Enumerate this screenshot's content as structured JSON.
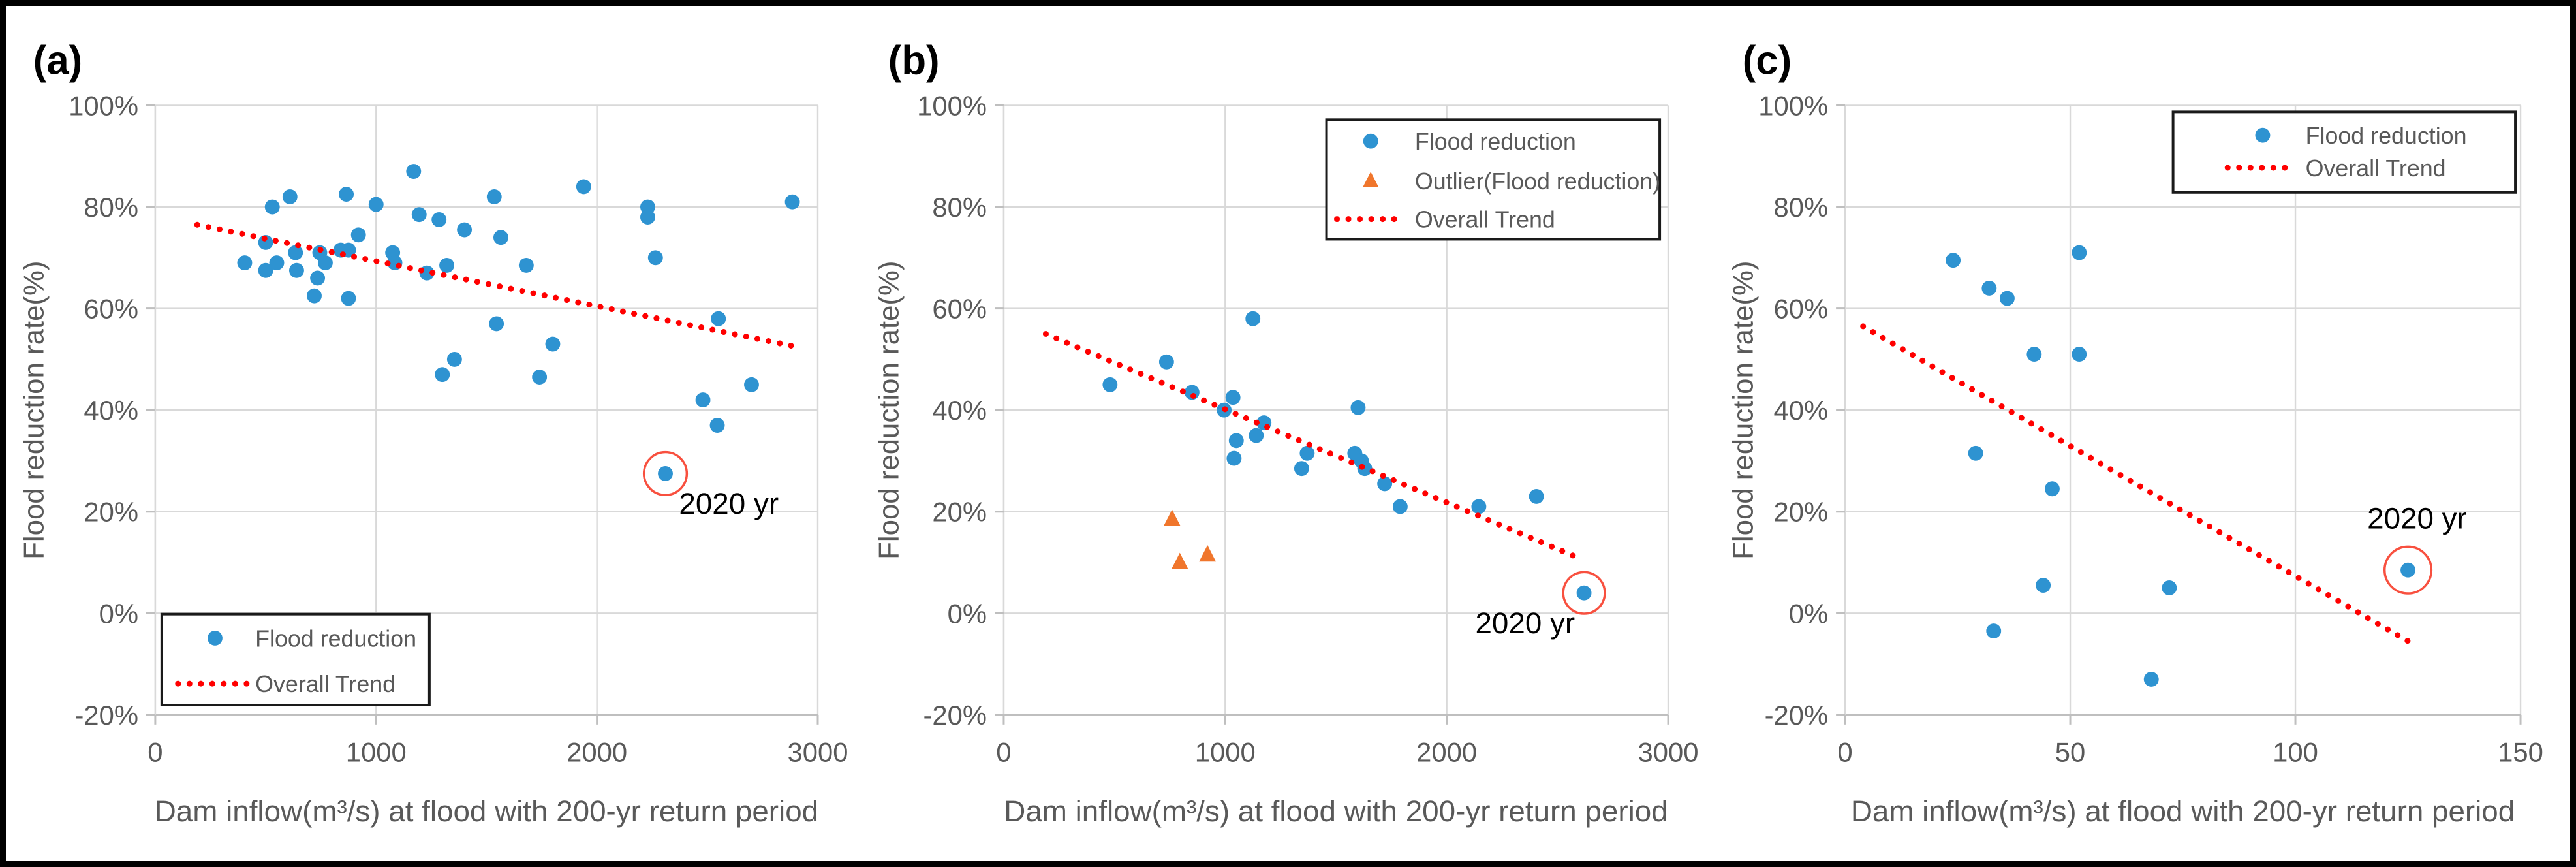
{
  "figure": {
    "background": "#ffffff",
    "border_color": "#000000"
  },
  "colors": {
    "point_blue": "#2E93D1",
    "outlier_orange": "#F0762C",
    "trend_red": "#FF0000",
    "annotation_circle_red": "#F8503F",
    "axis_text": "#595959",
    "annotation_text": "#000000",
    "panel_label_text": "#000000",
    "gridline": "#D9D9D9",
    "axis_line": "#BFBFBF",
    "legend_border": "#1a1a1a",
    "legend_background": "#ffffff"
  },
  "chart_data": [
    {
      "panel_label": "(a)",
      "type": "scatter",
      "xlabel": "Dam inflow(m³/s) at flood with 200-yr return period",
      "ylabel": "Flood reduction rate(%)",
      "xlim": [
        0,
        3000
      ],
      "xticks": [
        0,
        1000,
        2000,
        3000
      ],
      "xtick_labels": [
        "0",
        "1000",
        "2000",
        "3000"
      ],
      "ylim": [
        -20,
        100
      ],
      "yticks": [
        100,
        80,
        60,
        40,
        20,
        0,
        -20
      ],
      "ytick_labels": [
        "100%",
        "80%",
        "60%",
        "40%",
        "20%",
        "0%",
        "-20%"
      ],
      "grid": true,
      "legend": {
        "position": "bottom_left"
      },
      "series": [
        {
          "name": "Flood reduction",
          "marker": "circle",
          "color": "#2E93D1",
          "points": [
            [
              405,
              69
            ],
            [
              500,
              73
            ],
            [
              500,
              67.5
            ],
            [
              530,
              80
            ],
            [
              550,
              69
            ],
            [
              610,
              82
            ],
            [
              635,
              71
            ],
            [
              640,
              67.5
            ],
            [
              720,
              62.5
            ],
            [
              735,
              66
            ],
            [
              745,
              71
            ],
            [
              770,
              69
            ],
            [
              840,
              71.5
            ],
            [
              865,
              82.5
            ],
            [
              875,
              71.5
            ],
            [
              875,
              62
            ],
            [
              920,
              74.5
            ],
            [
              1000,
              80.5
            ],
            [
              1075,
              71
            ],
            [
              1085,
              69
            ],
            [
              1170,
              87
            ],
            [
              1195,
              78.5
            ],
            [
              1230,
              67
            ],
            [
              1285,
              77.5
            ],
            [
              1300,
              47
            ],
            [
              1320,
              68.5
            ],
            [
              1355,
              50
            ],
            [
              1400,
              75.5
            ],
            [
              1535,
              82
            ],
            [
              1545,
              57
            ],
            [
              1565,
              74
            ],
            [
              1680,
              68.5
            ],
            [
              1740,
              46.5
            ],
            [
              1800,
              53
            ],
            [
              1940,
              84
            ],
            [
              2230,
              80
            ],
            [
              2230,
              78
            ],
            [
              2265,
              70
            ],
            [
              2310,
              27.5
            ],
            [
              2480,
              42
            ],
            [
              2545,
              37
            ],
            [
              2550,
              58
            ],
            [
              2700,
              45
            ],
            [
              2885,
              81
            ]
          ]
        },
        {
          "name": "Overall Trend",
          "marker": "dotted_line",
          "color": "#FF0000",
          "trend": [
            [
              190,
              76.5
            ],
            [
              2900,
              52.5
            ]
          ]
        }
      ],
      "annotation": {
        "text": "2020 yr",
        "x": 2310,
        "y": 27.5
      }
    },
    {
      "panel_label": "(b)",
      "type": "scatter",
      "xlabel": "Dam inflow(m³/s) at flood with 200-yr return period",
      "ylabel": "Flood reduction rate(%)",
      "xlim": [
        0,
        3000
      ],
      "xticks": [
        0,
        1000,
        2000,
        3000
      ],
      "xtick_labels": [
        "0",
        "1000",
        "2000",
        "3000"
      ],
      "ylim": [
        -20,
        100
      ],
      "yticks": [
        100,
        80,
        60,
        40,
        20,
        0,
        -20
      ],
      "ytick_labels": [
        "100%",
        "80%",
        "60%",
        "40%",
        "20%",
        "0%",
        "-20%"
      ],
      "grid": true,
      "legend": {
        "position": "top_right"
      },
      "series": [
        {
          "name": "Flood reduction",
          "marker": "circle",
          "color": "#2E93D1",
          "points": [
            [
              480,
              45
            ],
            [
              735,
              49.5
            ],
            [
              850,
              43.5
            ],
            [
              995,
              40
            ],
            [
              1035,
              42.5
            ],
            [
              1040,
              30.5
            ],
            [
              1050,
              34
            ],
            [
              1125,
              58
            ],
            [
              1140,
              35
            ],
            [
              1175,
              37.5
            ],
            [
              1345,
              28.5
            ],
            [
              1370,
              31.5
            ],
            [
              1585,
              31.5
            ],
            [
              1600,
              40.5
            ],
            [
              1615,
              30
            ],
            [
              1630,
              28.5
            ],
            [
              1720,
              25.5
            ],
            [
              1790,
              21
            ],
            [
              2145,
              21
            ],
            [
              2405,
              23
            ],
            [
              2620,
              4
            ]
          ]
        },
        {
          "name": "Outlier(Flood reduction)",
          "marker": "triangle",
          "color": "#F0762C",
          "points": [
            [
              760,
              18.5
            ],
            [
              795,
              10
            ],
            [
              920,
              11.5
            ]
          ]
        },
        {
          "name": "Overall Trend",
          "marker": "dotted_line",
          "color": "#FF0000",
          "trend": [
            [
              190,
              55
            ],
            [
              2590,
              11
            ]
          ]
        }
      ],
      "annotation": {
        "text": "2020 yr",
        "x": 2620,
        "y": 4
      }
    },
    {
      "panel_label": "(c)",
      "type": "scatter",
      "xlabel": "Dam inflow(m³/s) at flood with 200-yr return period",
      "ylabel": "Flood reduction rate(%)",
      "xlim": [
        0,
        150
      ],
      "xticks": [
        0,
        50,
        100,
        150
      ],
      "xtick_labels": [
        "0",
        "50",
        "100",
        "150"
      ],
      "ylim": [
        -20,
        100
      ],
      "yticks": [
        100,
        80,
        60,
        40,
        20,
        0,
        -20
      ],
      "ytick_labels": [
        "100%",
        "80%",
        "60%",
        "40%",
        "20%",
        "0%",
        "-20%"
      ],
      "grid": true,
      "legend": {
        "position": "top_right"
      },
      "series": [
        {
          "name": "Flood reduction",
          "marker": "circle",
          "color": "#2E93D1",
          "points": [
            [
              24,
              69.5
            ],
            [
              32,
              64
            ],
            [
              36,
              62
            ],
            [
              42,
              51
            ],
            [
              46,
              24.5
            ],
            [
              52,
              71
            ],
            [
              52,
              51
            ],
            [
              29,
              31.5
            ],
            [
              44,
              5.5
            ],
            [
              72,
              5
            ],
            [
              33,
              -3.5
            ],
            [
              68,
              -13
            ],
            [
              125,
              8.5
            ]
          ]
        },
        {
          "name": "Overall Trend",
          "marker": "dotted_line",
          "color": "#FF0000",
          "trend": [
            [
              4,
              56.5
            ],
            [
              126,
              -6
            ]
          ]
        }
      ],
      "annotation": {
        "text": "2020 yr",
        "x": 125,
        "y": 8.5
      }
    }
  ]
}
